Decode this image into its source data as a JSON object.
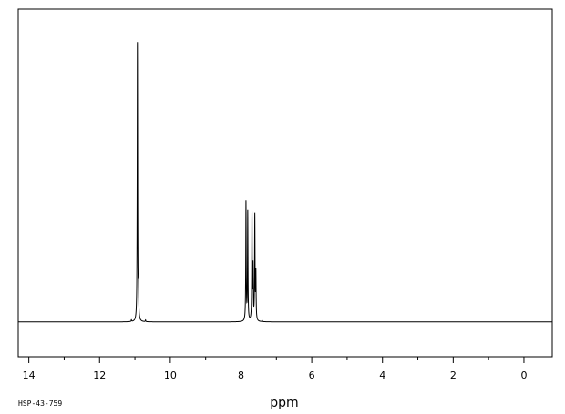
{
  "chart_data": {
    "type": "line",
    "title": "",
    "xlabel": "ppm",
    "ylabel": "",
    "sample_code": "HSP-43-759",
    "xlim": [
      14.3,
      -0.8
    ],
    "ylim": [
      -12,
      108
    ],
    "x_reversed": true,
    "grid": false,
    "legend": "none",
    "x_ticks": [
      14,
      12,
      10,
      8,
      6,
      4,
      2,
      0
    ],
    "x_minor_ticks": [
      13,
      11,
      9,
      7,
      5,
      3,
      1
    ],
    "baseline": 0,
    "colors": {
      "line": "#000000",
      "frame": "#000000",
      "background": "#ffffff"
    },
    "peaks": [
      {
        "ppm": 11.1,
        "height": 0.6
      },
      {
        "ppm": 10.93,
        "height": 96.0
      },
      {
        "ppm": 10.9,
        "height": 10.5
      },
      {
        "ppm": 10.7,
        "height": 0.6
      },
      {
        "ppm": 7.86,
        "height": 41.0
      },
      {
        "ppm": 7.81,
        "height": 37.5
      },
      {
        "ppm": 7.69,
        "height": 36.5
      },
      {
        "ppm": 7.66,
        "height": 18.0
      },
      {
        "ppm": 7.61,
        "height": 36.0
      },
      {
        "ppm": 7.58,
        "height": 16.0
      },
      {
        "ppm": 7.4,
        "height": 0.4
      }
    ]
  }
}
